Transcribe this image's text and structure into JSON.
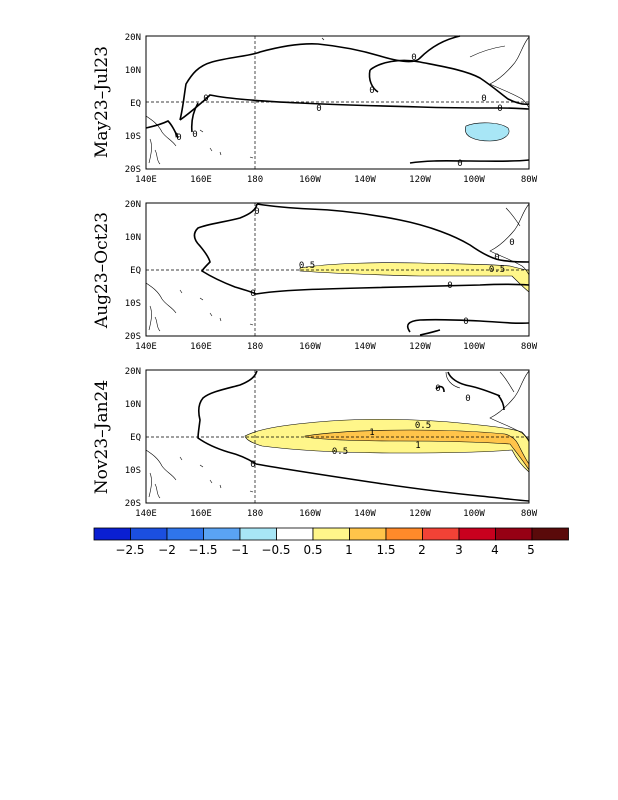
{
  "panels": [
    {
      "title": "May23–Jul23",
      "lat_labels": [
        "20N",
        "10N",
        "EQ",
        "10S",
        "20S"
      ],
      "lon_labels": [
        "140E",
        "160E",
        "180",
        "160W",
        "140W",
        "120W",
        "100W",
        "80W"
      ],
      "contour_labels": [
        "0",
        "0",
        "0",
        "0",
        "0",
        "0",
        "0",
        "0",
        "0"
      ]
    },
    {
      "title": "Aug23–Oct23",
      "lat_labels": [
        "20N",
        "10N",
        "EQ",
        "10S",
        "20S"
      ],
      "lon_labels": [
        "140E",
        "160E",
        "180",
        "160W",
        "140W",
        "120W",
        "100W",
        "80W"
      ],
      "contour_labels": [
        "0",
        "0",
        "0",
        "0",
        "0",
        "0.5",
        "0.5",
        "0"
      ]
    },
    {
      "title": "Nov23–Jan24",
      "lat_labels": [
        "20N",
        "10N",
        "EQ",
        "10S",
        "20S"
      ],
      "lon_labels": [
        "140E",
        "160E",
        "180",
        "160W",
        "140W",
        "120W",
        "100W",
        "80W"
      ],
      "contour_labels": [
        "0",
        "0",
        "0",
        "0.5",
        "0.5",
        "1",
        "1"
      ]
    }
  ],
  "colorbar": {
    "ticks": [
      "−2.5",
      "−2",
      "−1.5",
      "−1",
      "−0.5",
      "0.5",
      "1",
      "1.5",
      "2",
      "3",
      "4",
      "5"
    ],
    "colors": [
      "#0a1fd2",
      "#1b4fe0",
      "#2f75ec",
      "#5aa3f4",
      "#a8e6f6",
      "#ffffff",
      "#fff68a",
      "#ffc44a",
      "#ff8a2a",
      "#f24236",
      "#c8001e",
      "#960014",
      "#5a0a0a"
    ]
  }
}
